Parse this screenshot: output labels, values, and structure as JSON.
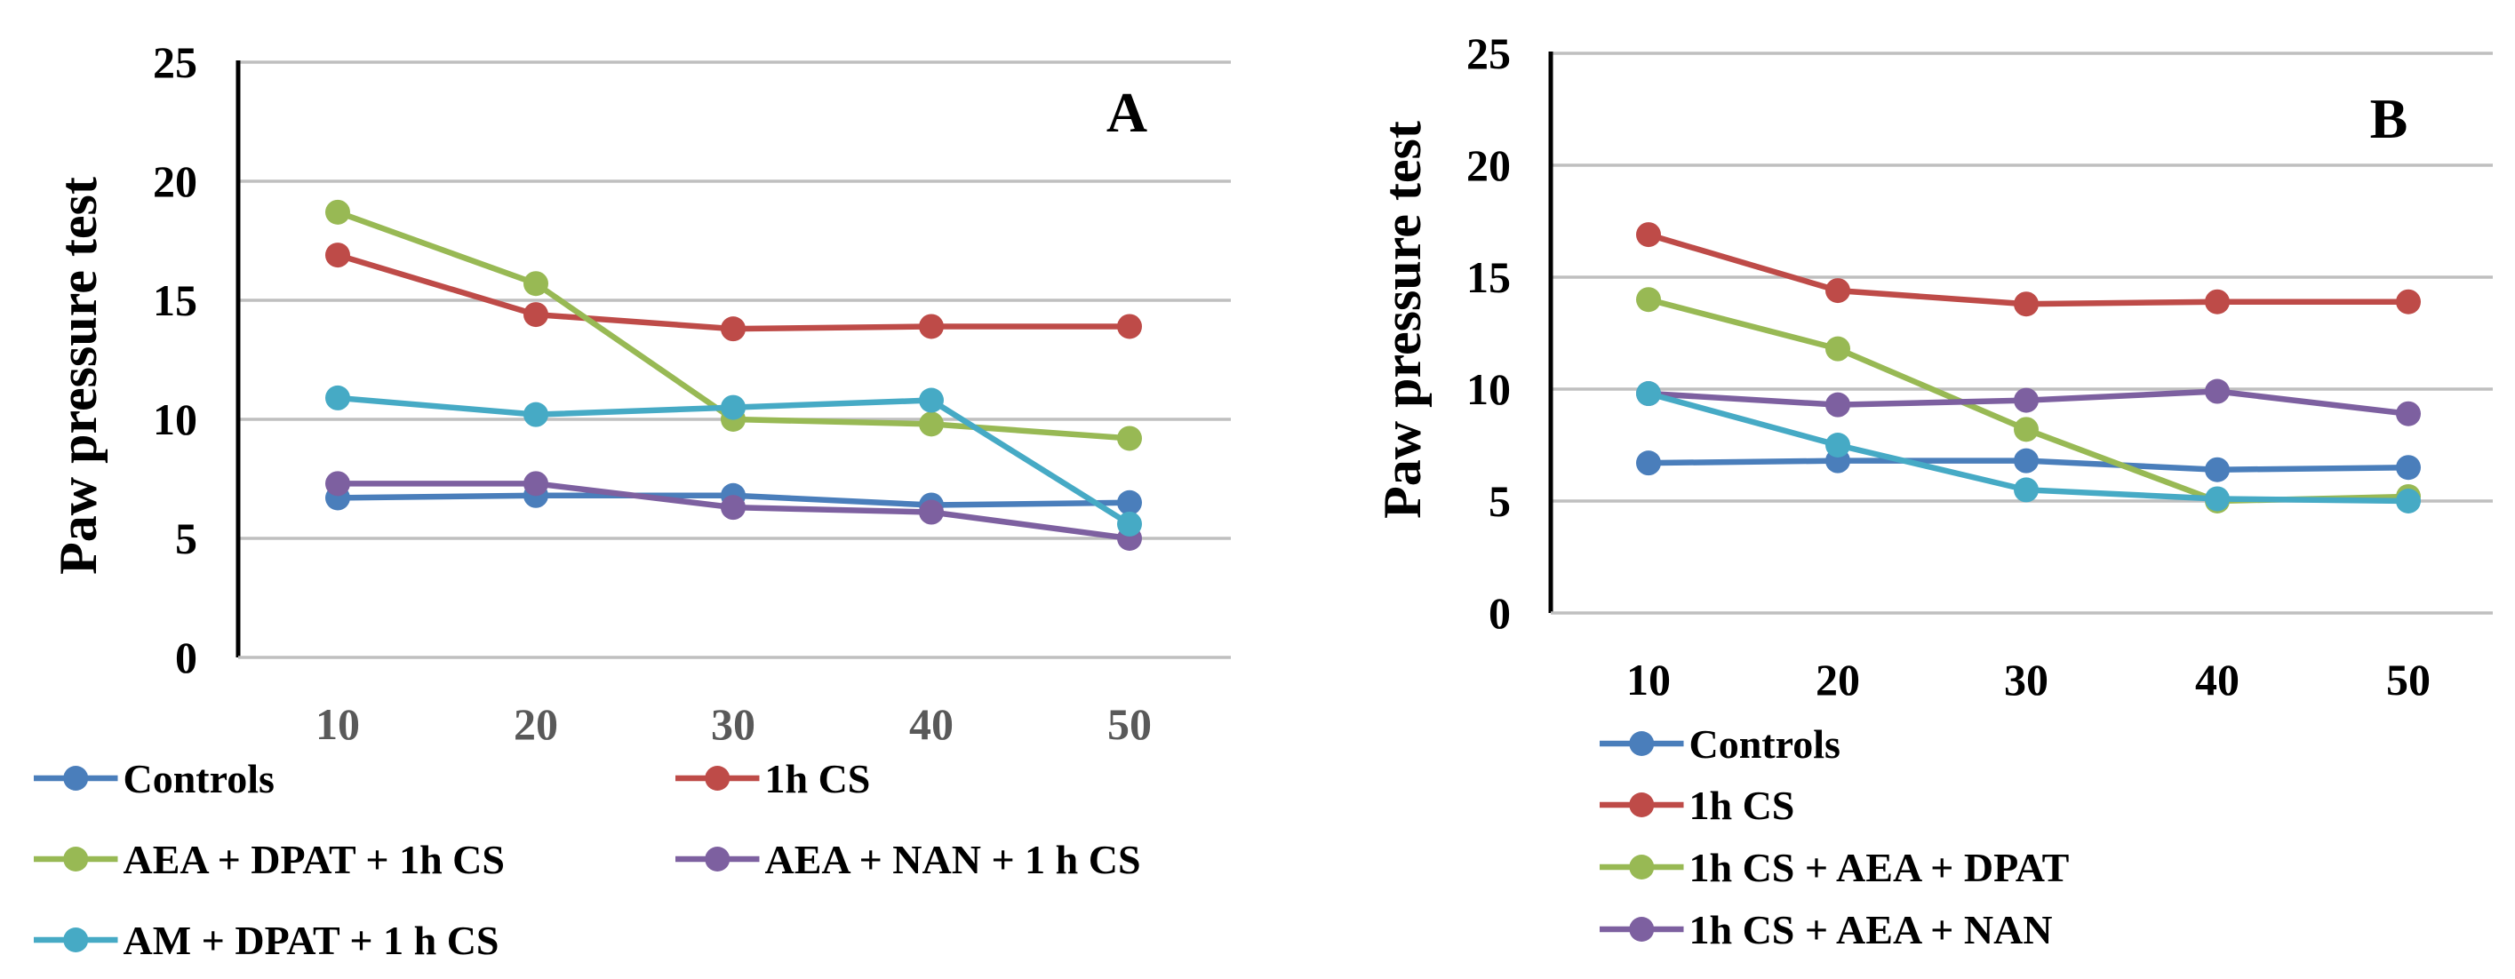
{
  "chart_data": [
    {
      "type": "line",
      "panel_label": "A",
      "ylabel": "Paw pressure test",
      "xlabel": "",
      "categories": [
        "10",
        "20",
        "30",
        "40",
        "50"
      ],
      "y_ticks": [
        "0",
        "5",
        "10",
        "15",
        "20",
        "25"
      ],
      "ylim": [
        0,
        25
      ],
      "grid": true,
      "legend": "bottom",
      "series": [
        {
          "name": "Controls",
          "color": "#4A7EBB",
          "values": [
            6.7,
            6.8,
            6.8,
            6.4,
            6.5
          ]
        },
        {
          "name": "1h CS",
          "color": "#BE4B48",
          "values": [
            16.9,
            14.4,
            13.8,
            13.9,
            13.9
          ]
        },
        {
          "name": "AEA + DPAT + 1h CS",
          "color": "#98B954",
          "values": [
            18.7,
            15.7,
            10.0,
            9.8,
            9.2
          ]
        },
        {
          "name": "AEA  + NAN  + 1 h CS",
          "color": "#7D60A0",
          "values": [
            7.3,
            7.3,
            6.3,
            6.1,
            5.0
          ]
        },
        {
          "name": "AM +  DPAT + 1 h CS",
          "color": "#46AAC5",
          "values": [
            10.9,
            10.2,
            10.5,
            10.8,
            5.6
          ]
        }
      ]
    },
    {
      "type": "line",
      "panel_label": "B",
      "ylabel": "Paw pressure test",
      "xlabel": "",
      "categories": [
        "10",
        "20",
        "30",
        "40",
        "50"
      ],
      "y_ticks": [
        "0",
        "5",
        "10",
        "15",
        "20",
        "25"
      ],
      "ylim": [
        0,
        25
      ],
      "grid": true,
      "legend": "bottom",
      "series": [
        {
          "name": "Controls",
          "color": "#4A7EBB",
          "values": [
            6.7,
            6.8,
            6.8,
            6.4,
            6.5
          ]
        },
        {
          "name": "1h CS",
          "color": "#BE4B48",
          "values": [
            16.9,
            14.4,
            13.8,
            13.9,
            13.9
          ]
        },
        {
          "name": "1h CS + AEA + DPAT",
          "color": "#98B954",
          "values": [
            14.0,
            11.8,
            8.2,
            5.0,
            5.2
          ]
        },
        {
          "name": "1h CS + AEA  + NAN",
          "color": "#7D60A0",
          "values": [
            9.8,
            9.3,
            9.5,
            9.9,
            8.9
          ]
        },
        {
          "name": "",
          "color": "#46AAC5",
          "values": [
            9.8,
            7.5,
            5.5,
            5.1,
            5.0
          ]
        }
      ]
    }
  ]
}
